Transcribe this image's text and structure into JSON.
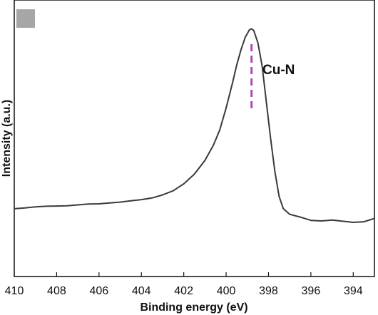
{
  "chart_data": {
    "type": "line",
    "xlabel": "Binding energy (eV)",
    "ylabel": "Intensity (a.u.)",
    "xlim": [
      410,
      393
    ],
    "x_reversed": true,
    "xticks": [
      410,
      408,
      406,
      404,
      402,
      400,
      398,
      396,
      394
    ],
    "ylim": [
      0,
      100
    ],
    "y_tick_labels_shown": false,
    "grid": false,
    "series": [
      {
        "color": "#3a3a3a",
        "x": [
          410,
          409.5,
          409,
          408.5,
          408,
          407.5,
          407,
          406.5,
          406,
          405.5,
          405,
          404.5,
          404,
          403.5,
          403,
          402.5,
          402,
          401.5,
          401,
          400.6,
          400.3,
          400,
          399.7,
          399.5,
          399.3,
          399.1,
          398.9,
          398.8,
          398.7,
          398.5,
          398.3,
          398.1,
          397.9,
          397.7,
          397.5,
          397.3,
          397,
          396.5,
          396,
          395.5,
          395,
          394.5,
          394,
          393.5,
          393
        ],
        "y": [
          24.5,
          24.8,
          25.2,
          25.4,
          25.5,
          25.6,
          25.9,
          26.2,
          26.3,
          26.6,
          26.9,
          27.4,
          27.8,
          28.4,
          29.5,
          31,
          33.5,
          37,
          42,
          47.5,
          53,
          61,
          70,
          76.5,
          82,
          86.5,
          89.2,
          89.6,
          89,
          84.5,
          76,
          63,
          50,
          38,
          29,
          24.5,
          22.5,
          21.5,
          20.3,
          20.1,
          20.4,
          20,
          19.6,
          19.8,
          21
        ]
      }
    ],
    "annotations": [
      {
        "text": "Cu-N",
        "x": 398.8,
        "color": "#b04ab0",
        "style": "dashed vertical line"
      }
    ],
    "legend": "none"
  }
}
